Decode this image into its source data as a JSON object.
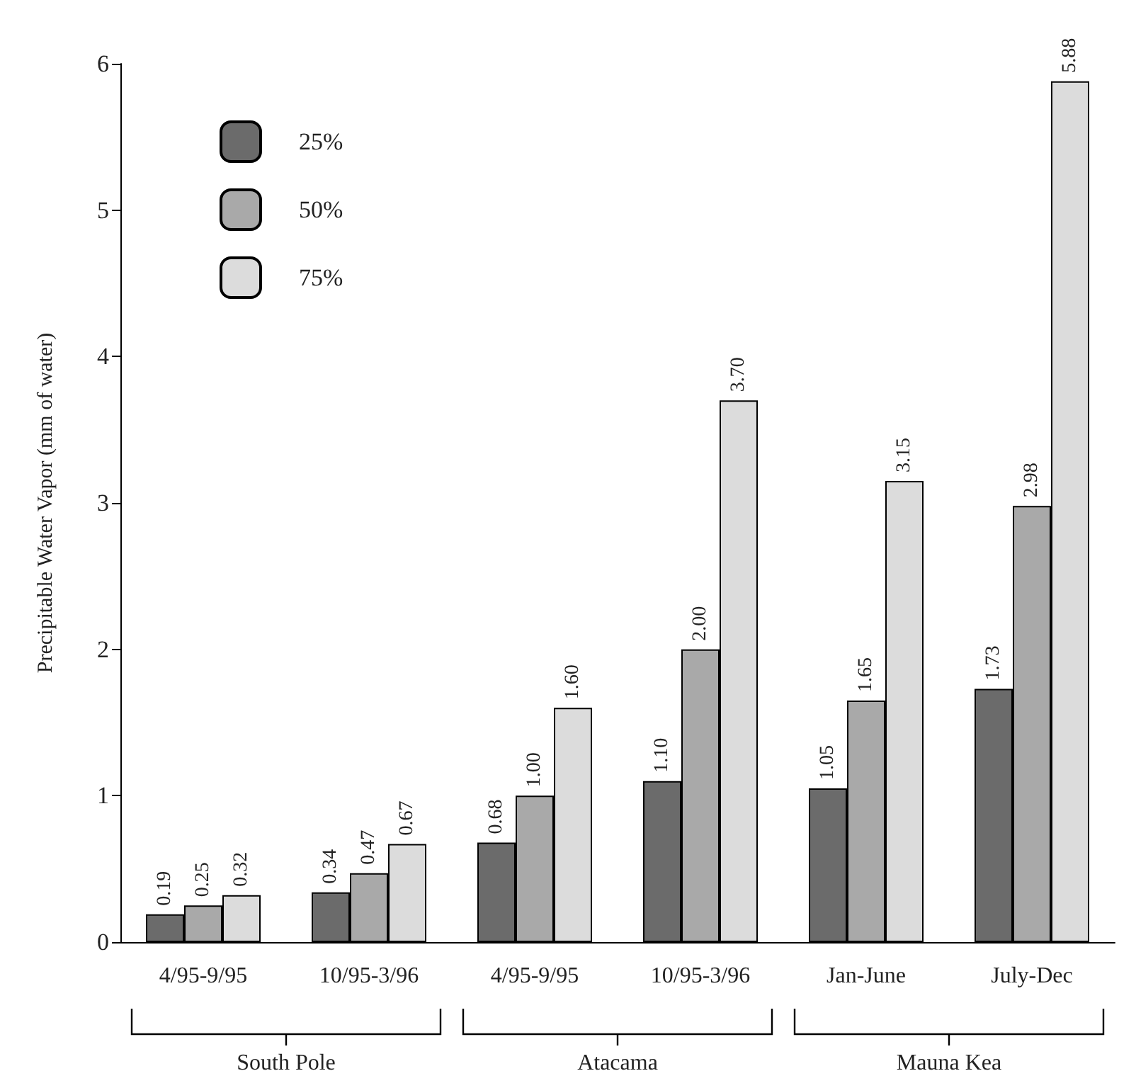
{
  "chart_data": {
    "type": "bar",
    "ylabel": "Precipitable Water Vapor (mm of water)",
    "categories": [
      "4/95-9/95",
      "10/95-3/96",
      "4/95-9/95",
      "10/95-3/96",
      "Jan-June",
      "July-Dec"
    ],
    "series": [
      {
        "name": "25%",
        "color": "#6b6b6b",
        "values": [
          0.19,
          0.34,
          0.68,
          1.1,
          1.05,
          1.73
        ],
        "value_labels": [
          "0.19",
          "0.34",
          "0.68",
          "1.10",
          "1.05",
          "1.73"
        ]
      },
      {
        "name": "50%",
        "color": "#a9a9a9",
        "values": [
          0.25,
          0.47,
          1.0,
          2.0,
          1.65,
          2.98
        ],
        "value_labels": [
          "0.25",
          "0.47",
          "1.00",
          "2.00",
          "1.65",
          "2.98"
        ]
      },
      {
        "name": "75%",
        "color": "#dcdcdc",
        "values": [
          0.32,
          0.67,
          1.6,
          3.7,
          3.15,
          5.88
        ],
        "value_labels": [
          "0.32",
          "0.67",
          "1.60",
          "3.70",
          "3.15",
          "5.88"
        ]
      }
    ],
    "ylim": [
      0,
      6
    ],
    "yticks": [
      0,
      1,
      2,
      3,
      4,
      5,
      6
    ],
    "grid": false,
    "legend": "top left",
    "annotations": [
      "South Pole",
      "Atacama",
      "Mauna Kea"
    ]
  }
}
